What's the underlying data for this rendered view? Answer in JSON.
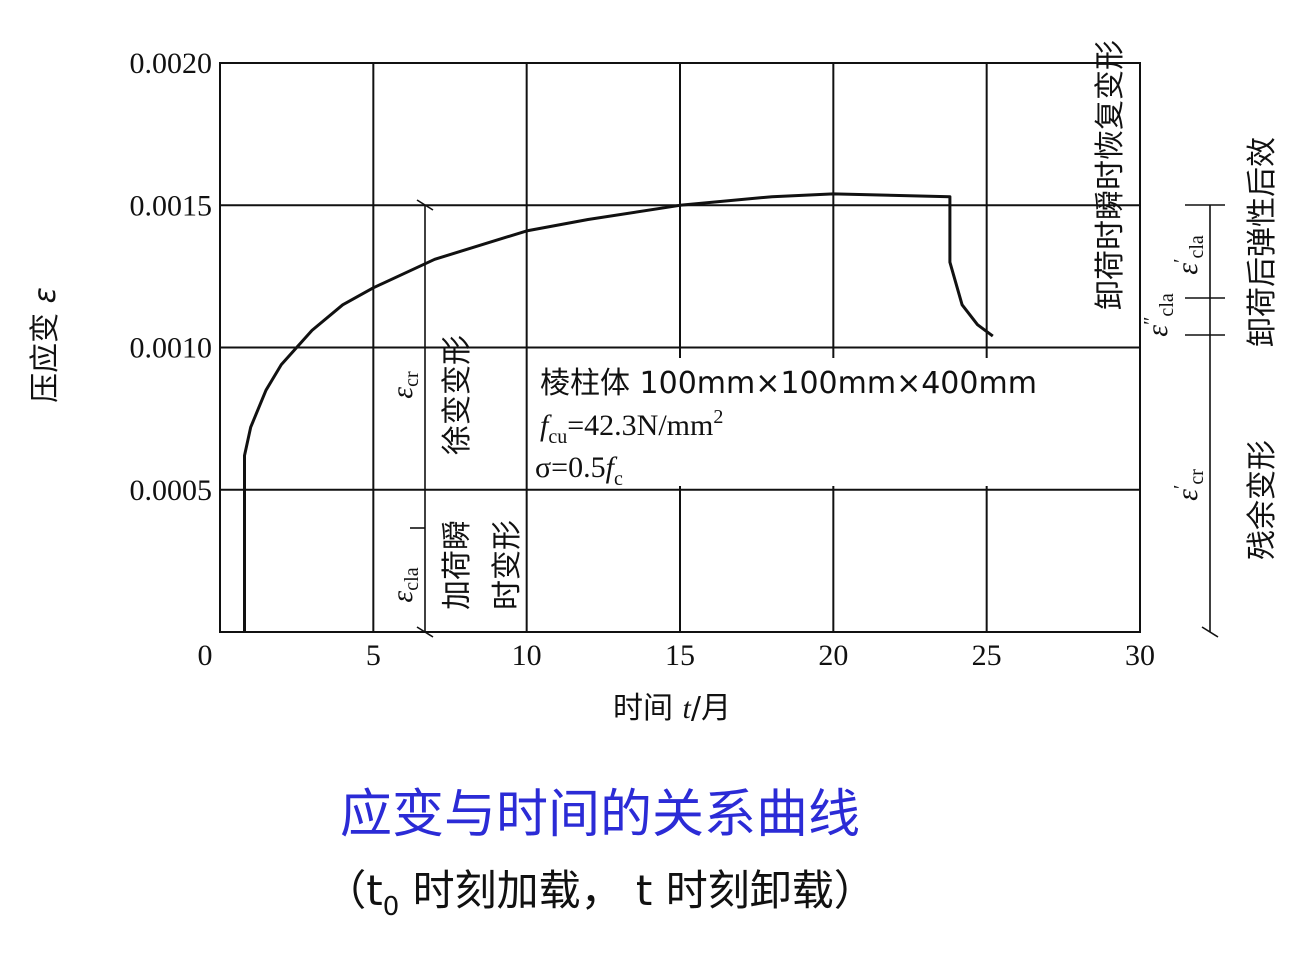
{
  "chart_data": {
    "type": "line",
    "title": "应变与时间的关系曲线",
    "subtitle": [
      "（t",
      "0",
      " 时刻加载， t 时刻卸载）"
    ],
    "xlabel": [
      "时间 ",
      "t",
      "/月"
    ],
    "ylabel": [
      "压应变 ",
      "ε"
    ],
    "x": [
      0.8,
      0.8,
      1.0,
      1.5,
      2,
      3,
      4,
      5,
      7,
      10,
      12,
      15,
      18,
      20,
      23.8,
      23.8,
      24.2,
      24.7,
      25.2
    ],
    "series": [
      {
        "name": "压应变",
        "color": "#111111",
        "values": [
          0,
          0.00062,
          0.00072,
          0.00085,
          0.00094,
          0.00106,
          0.00115,
          0.00121,
          0.00131,
          0.00141,
          0.00145,
          0.0015,
          0.00153,
          0.00154,
          0.00153,
          0.0013,
          0.00115,
          0.00108,
          0.00104
        ]
      }
    ],
    "xlim": [
      0,
      30
    ],
    "ylim": [
      0,
      0.002
    ],
    "xticks": [
      0,
      5,
      10,
      15,
      20,
      25,
      30
    ],
    "yticks": [
      0.0005,
      {
        "value": 0.001,
        "label": "0.0010"
      },
      0.0015,
      {
        "value": 0.002,
        "label": "0.0020"
      }
    ],
    "grid": true,
    "annotations": [
      "卸荷时瞬时恢复变形",
      "卸荷后弹性后效",
      "残余变形",
      "徐变变形",
      "加荷瞬",
      "时变形"
    ],
    "symbols": [
      {
        "symbol": "ε",
        "sub": "cr"
      },
      {
        "symbol": "ε",
        "sub": "cla"
      },
      {
        "symbol": "ε",
        "prime": "′",
        "sub": "cla"
      },
      {
        "symbol": "ε",
        "prime": "″",
        "sub": "cla"
      },
      {
        "symbol": "ε",
        "prime": "′",
        "sub": "cr"
      }
    ],
    "spec": [
      "棱柱体 100mm×100mm×400mm",
      [
        "f",
        "cu",
        "=42.3N/mm",
        "2"
      ],
      [
        "σ=0.5",
        "f",
        "c"
      ]
    ]
  }
}
